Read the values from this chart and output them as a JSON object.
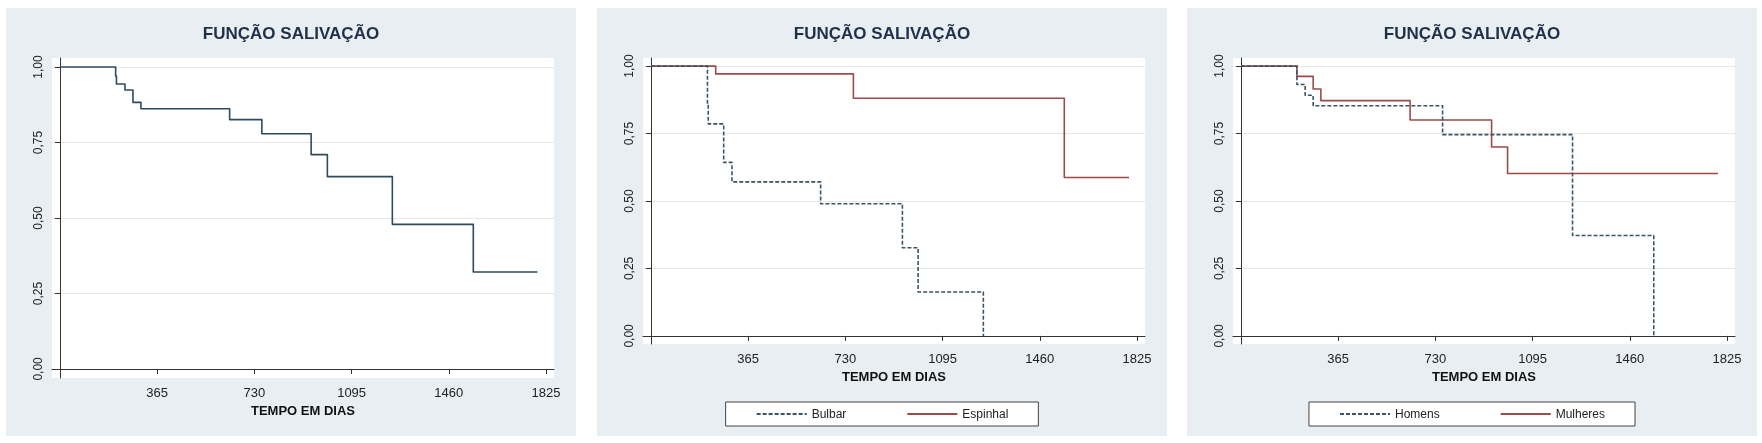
{
  "chart_data": [
    {
      "type": "step",
      "title": "FUNÇÃO SALIVAÇÃO",
      "xlabel": "TEMPO EM DIAS",
      "xlim": [
        -30,
        1855
      ],
      "xticks": [
        365,
        730,
        1095,
        1460,
        1825
      ],
      "ylim": [
        -0.03,
        1.03
      ],
      "yticks": [
        {
          "value": 0,
          "label": "0,00"
        },
        {
          "value": 0.25,
          "label": "0,25"
        },
        {
          "value": 0.5,
          "label": "0,50"
        },
        {
          "value": 0.75,
          "label": "0,75"
        },
        {
          "value": 1,
          "label": "1,00"
        }
      ],
      "grid": "y",
      "legend": false,
      "marker": "none",
      "series": [
        {
          "color": "#2f4a5c",
          "line_style": "solid",
          "x": [
            0,
            209,
            212,
            244,
            274,
            304,
            637,
            758,
            943,
            1004,
            1248,
            1552,
            1793
          ],
          "values": [
            1,
            0.97,
            0.944,
            0.924,
            0.883,
            0.862,
            0.826,
            0.779,
            0.71,
            0.637,
            0.479,
            0.321,
            0.321
          ]
        }
      ]
    },
    {
      "type": "step",
      "title": "FUNÇÃO SALIVAÇÃO",
      "xlabel": "TEMPO EM DIAS",
      "xlim": [
        -30,
        1855
      ],
      "xticks": [
        365,
        730,
        1095,
        1460,
        1825
      ],
      "ylim": [
        -0.03,
        1.03
      ],
      "yticks": [
        {
          "value": 0,
          "label": "0,00"
        },
        {
          "value": 0.25,
          "label": "0,25"
        },
        {
          "value": 0.5,
          "label": "0,50"
        },
        {
          "value": 0.75,
          "label": "0,75"
        },
        {
          "value": 1,
          "label": "1,00"
        }
      ],
      "grid": "y",
      "legend": "bottom",
      "marker": "none",
      "series": [
        {
          "name": "Bulbar",
          "color": "#3b5366",
          "line_style": "dashed",
          "x": [
            0,
            212,
            215,
            273,
            304,
            637,
            944,
            1003,
            1248
          ],
          "values": [
            1,
            0.857,
            0.786,
            0.643,
            0.571,
            0.49,
            0.327,
            0.163,
            0
          ]
        },
        {
          "name": "Espinhal",
          "color": "#9c4a4a",
          "line_style": "solid",
          "x": [
            0,
            243,
            760,
            1552,
            1795
          ],
          "values": [
            1,
            0.971,
            0.881,
            0.587,
            0.587
          ]
        }
      ]
    },
    {
      "type": "step",
      "title": "FUNÇÃO SALIVAÇÃO",
      "xlabel": "TEMPO EM DIAS",
      "xlim": [
        -30,
        1855
      ],
      "xticks": [
        365,
        730,
        1095,
        1460,
        1825
      ],
      "ylim": [
        -0.03,
        1.03
      ],
      "yticks": [
        {
          "value": 0,
          "label": "0,00"
        },
        {
          "value": 0.25,
          "label": "0,25"
        },
        {
          "value": 0.5,
          "label": "0,50"
        },
        {
          "value": 0.75,
          "label": "0,75"
        },
        {
          "value": 1,
          "label": "1,00"
        }
      ],
      "grid": "y",
      "legend": "bottom",
      "marker": "none",
      "series": [
        {
          "name": "Homens",
          "color": "#3b5366",
          "line_style": "dashed",
          "x": [
            0,
            210,
            241,
            271,
            757,
            1245,
            1550
          ],
          "values": [
            1,
            0.932,
            0.892,
            0.853,
            0.746,
            0.372,
            0
          ]
        },
        {
          "name": "Mulheres",
          "color": "#9c4a4a",
          "line_style": "solid",
          "x": [
            0,
            210,
            271,
            300,
            635,
            941,
            1001,
            1791
          ],
          "values": [
            1,
            0.962,
            0.915,
            0.872,
            0.8,
            0.7,
            0.602,
            0.602
          ]
        }
      ]
    }
  ]
}
